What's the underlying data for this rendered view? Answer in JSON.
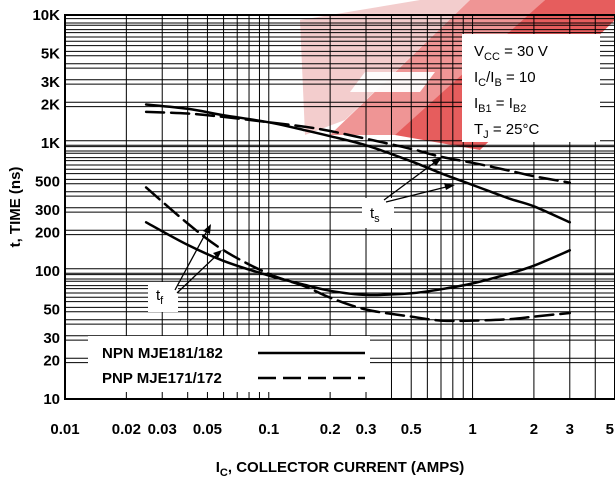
{
  "chart_data": {
    "type": "line",
    "x_scale": "log",
    "y_scale": "log",
    "xlim": [
      0.01,
      5
    ],
    "ylim": [
      10,
      10000
    ],
    "xlabel_base": "I",
    "xlabel_sub": "C",
    "xlabel_rest": ", COLLECTOR CURRENT (AMPS)",
    "ylabel": "t, TIME (ns)",
    "x_ticks": [
      {
        "value": 0.01,
        "label": "0.01"
      },
      {
        "value": 0.02,
        "label": "0.02"
      },
      {
        "value": 0.03,
        "label": "0.03"
      },
      {
        "value": 0.05,
        "label": "0.05"
      },
      {
        "value": 0.1,
        "label": "0.1"
      },
      {
        "value": 0.2,
        "label": "0.2"
      },
      {
        "value": 0.3,
        "label": "0.3"
      },
      {
        "value": 0.5,
        "label": "0.5"
      },
      {
        "value": 1,
        "label": "1"
      },
      {
        "value": 2,
        "label": "2"
      },
      {
        "value": 3,
        "label": "3"
      },
      {
        "value": 5,
        "label": "5"
      }
    ],
    "y_ticks": [
      {
        "value": 10,
        "label": "10"
      },
      {
        "value": 20,
        "label": "20"
      },
      {
        "value": 30,
        "label": "30"
      },
      {
        "value": 50,
        "label": "50"
      },
      {
        "value": 100,
        "label": "100"
      },
      {
        "value": 200,
        "label": "200"
      },
      {
        "value": 300,
        "label": "300"
      },
      {
        "value": 500,
        "label": "500"
      },
      {
        "value": 1000,
        "label": "1K"
      },
      {
        "value": 2000,
        "label": "2K"
      },
      {
        "value": 3000,
        "label": "3K"
      },
      {
        "value": 5000,
        "label": "5K"
      },
      {
        "value": 10000,
        "label": "10K"
      }
    ],
    "grid": true,
    "conditions": {
      "vcc": {
        "base": "V",
        "sub": "CC",
        "rest": " = 30 V"
      },
      "ratio": {
        "a": "I",
        "a_sub": "C",
        "mid": "/I",
        "b_sub": "B",
        "rest": " = 10"
      },
      "ib": {
        "a": "I",
        "a_sub": "B1",
        "mid": " = I",
        "b_sub": "B2"
      },
      "tj": {
        "base": "T",
        "sub": "J",
        "rest": " = 25°C"
      }
    },
    "curve_labels": {
      "ts": {
        "base": "t",
        "sub": "s"
      },
      "tf": {
        "base": "t",
        "sub": "f"
      }
    },
    "legend": {
      "position": "bottom-left",
      "entries": [
        {
          "label": "NPN MJE181/182",
          "style": "solid"
        },
        {
          "label": "PNP MJE171/172",
          "style": "dashed"
        }
      ]
    },
    "series": [
      {
        "style": "solid",
        "group": "ts",
        "x": [
          0.025,
          0.04,
          0.06,
          0.1,
          0.15,
          0.2,
          0.3,
          0.5,
          0.7,
          1,
          1.5,
          2,
          3
        ],
        "y": [
          2000,
          1850,
          1650,
          1450,
          1260,
          1130,
          960,
          720,
          580,
          470,
          370,
          320,
          240
        ]
      },
      {
        "style": "dashed",
        "group": "ts",
        "x": [
          0.025,
          0.04,
          0.06,
          0.1,
          0.15,
          0.2,
          0.3,
          0.5,
          0.7,
          1,
          1.5,
          2,
          3
        ],
        "y": [
          1750,
          1700,
          1600,
          1450,
          1340,
          1240,
          1080,
          900,
          780,
          700,
          610,
          550,
          490
        ]
      },
      {
        "style": "solid",
        "group": "tf",
        "x": [
          0.025,
          0.04,
          0.06,
          0.1,
          0.15,
          0.2,
          0.3,
          0.5,
          0.7,
          1,
          1.5,
          2,
          3
        ],
        "y": [
          240,
          160,
          120,
          92,
          78,
          70,
          65,
          67,
          72,
          80,
          95,
          110,
          145
        ]
      },
      {
        "style": "dashed",
        "group": "tf",
        "x": [
          0.025,
          0.04,
          0.06,
          0.1,
          0.15,
          0.2,
          0.3,
          0.5,
          0.7,
          1,
          1.5,
          2,
          3
        ],
        "y": [
          450,
          235,
          145,
          95,
          76,
          62,
          50,
          44,
          41,
          41,
          42,
          44,
          47
        ]
      }
    ]
  }
}
